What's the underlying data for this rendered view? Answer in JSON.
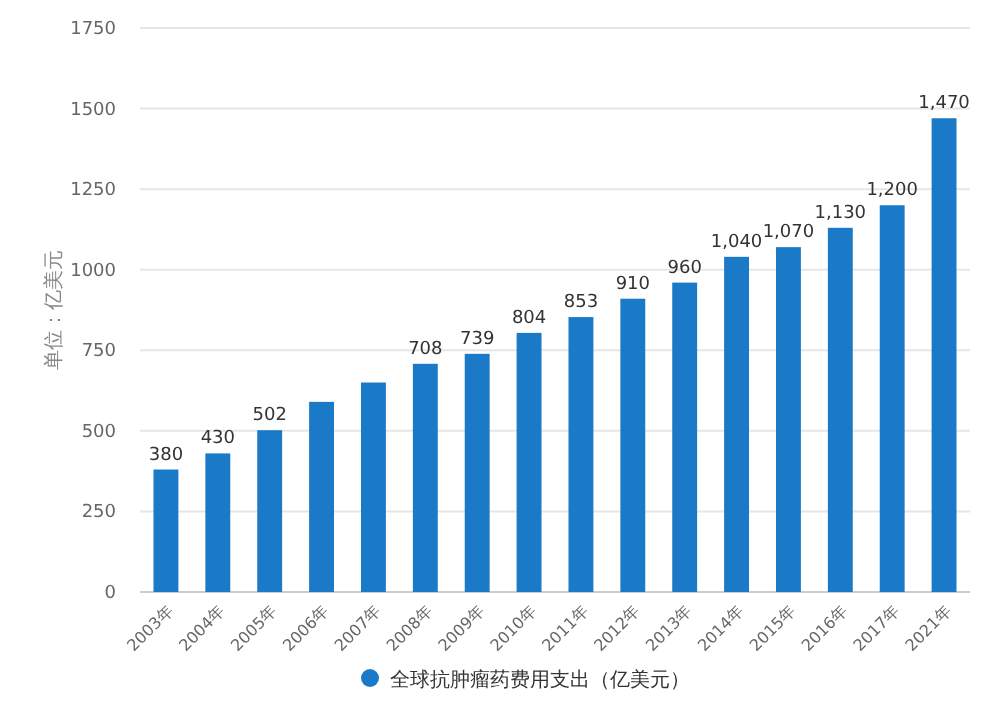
{
  "chart_data": {
    "type": "bar",
    "ylabel": "单位：亿美元",
    "categories": [
      "2003年",
      "2004年",
      "2005年",
      "2006年",
      "2007年",
      "2008年",
      "2009年",
      "2010年",
      "2011年",
      "2012年",
      "2013年",
      "2014年",
      "2015年",
      "2016年",
      "2017年",
      "2021年"
    ],
    "series": [
      {
        "name": "全球抗肿瘤药费用支出（亿美元）",
        "color": "#1a7ac8",
        "values": [
          380,
          430,
          502,
          590,
          650,
          708,
          739,
          804,
          853,
          910,
          960,
          1040,
          1070,
          1130,
          1200,
          1470
        ],
        "value_labels": [
          "380",
          "430",
          "502",
          null,
          null,
          "708",
          "739",
          "804",
          "853",
          "910",
          "960",
          "1,040",
          "1,070",
          "1,130",
          "1,200",
          "1,470"
        ]
      }
    ],
    "ylim": [
      0,
      1750
    ],
    "yticks": [
      0,
      250,
      500,
      750,
      1000,
      1250,
      1500,
      1750
    ],
    "grid": "y",
    "legend": "bottom"
  }
}
